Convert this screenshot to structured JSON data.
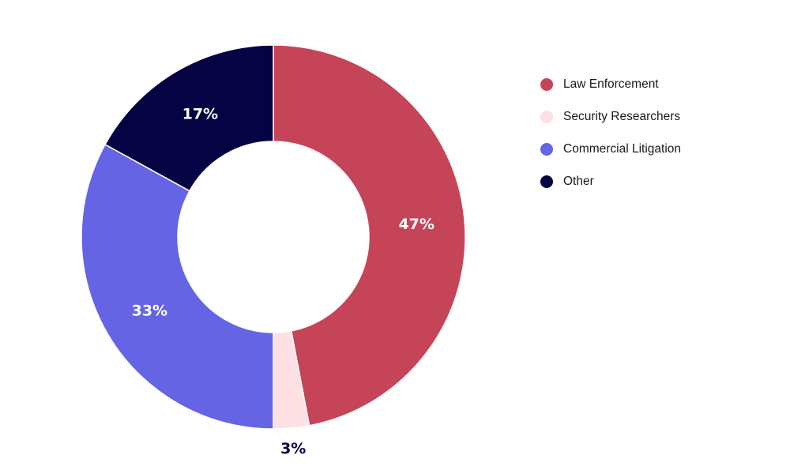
{
  "chart_data": {
    "type": "pie",
    "variant": "donut",
    "title": "",
    "legend_position": "right",
    "slices": [
      {
        "label": "Law Enforcement",
        "value": 47,
        "display": "47%",
        "color": "#C64457"
      },
      {
        "label": "Security Researchers",
        "value": 3,
        "display": "3%",
        "color": "#FDE0E3"
      },
      {
        "label": "Commercial Litigation",
        "value": 33,
        "display": "33%",
        "color": "#6464E4"
      },
      {
        "label": "Other",
        "value": 17,
        "display": "17%",
        "color": "#050343"
      }
    ]
  }
}
